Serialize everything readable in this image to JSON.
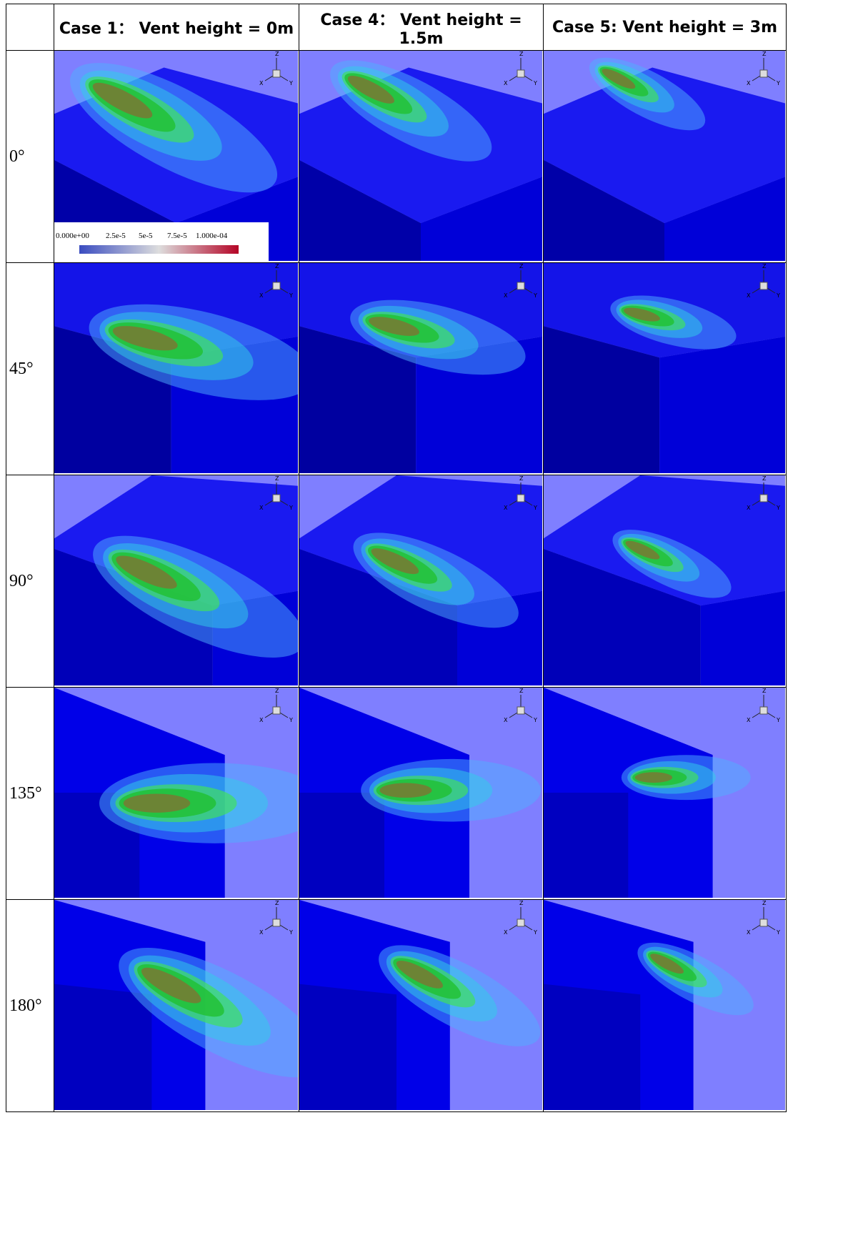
{
  "columns": [
    "Case 1： Vent height = 0m",
    "Case 4： Vent height = 1.5m",
    "Case 5: Vent height = 3m"
  ],
  "rows": [
    "0°",
    "45°",
    "90°",
    "135°",
    "180°"
  ],
  "colorbar": {
    "ticks": [
      "0.000e+00",
      "2.5e-5",
      "5e-5",
      "7.5e-5",
      "1.000e-04"
    ]
  },
  "triad": {
    "z": "Z",
    "x": "X",
    "y": "Y"
  }
}
